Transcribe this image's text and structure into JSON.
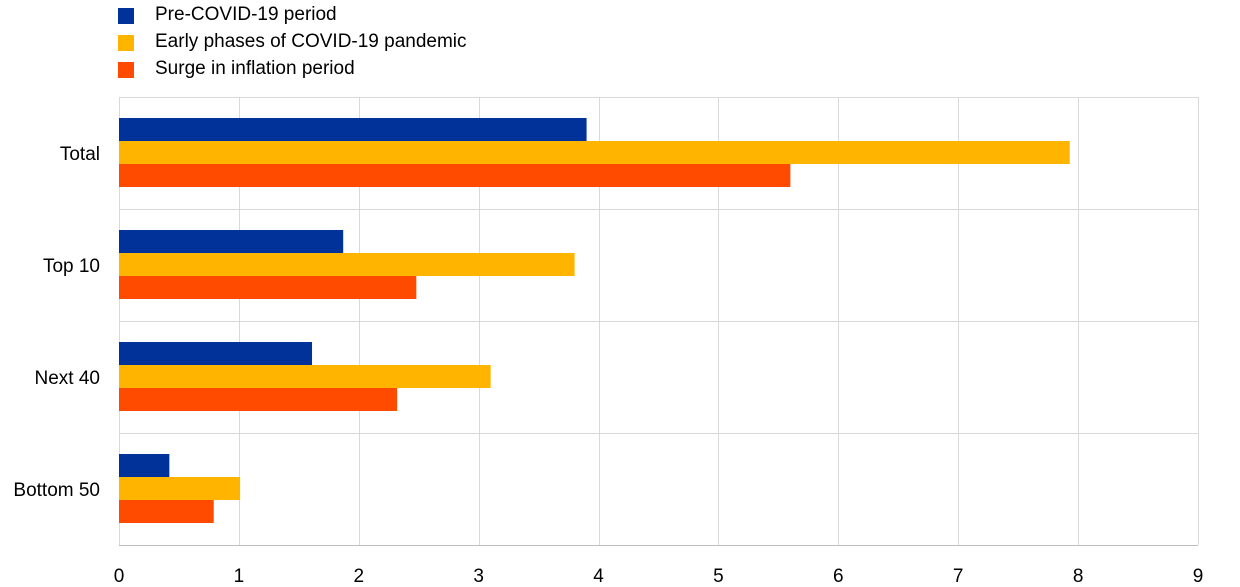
{
  "chart_data": {
    "type": "bar",
    "orientation": "horizontal",
    "categories": [
      "Total",
      "Top 10",
      "Next 40",
      "Bottom 50"
    ],
    "series": [
      {
        "name": "Pre-COVID-19 period",
        "color": "#003299",
        "values": [
          3.9,
          1.87,
          1.61,
          0.42
        ]
      },
      {
        "name": "Early phases of COVID-19 pandemic",
        "color": "#FFB400",
        "values": [
          7.93,
          3.8,
          3.1,
          1.01
        ]
      },
      {
        "name": "Surge in inflation period",
        "color": "#FF4B00",
        "values": [
          5.6,
          2.48,
          2.32,
          0.79
        ]
      }
    ],
    "xlim": [
      0,
      9
    ],
    "xticks": [
      "0",
      "1",
      "2",
      "3",
      "4",
      "5",
      "6",
      "7",
      "8",
      "9"
    ],
    "grid": true,
    "legend_position": "top-left"
  }
}
